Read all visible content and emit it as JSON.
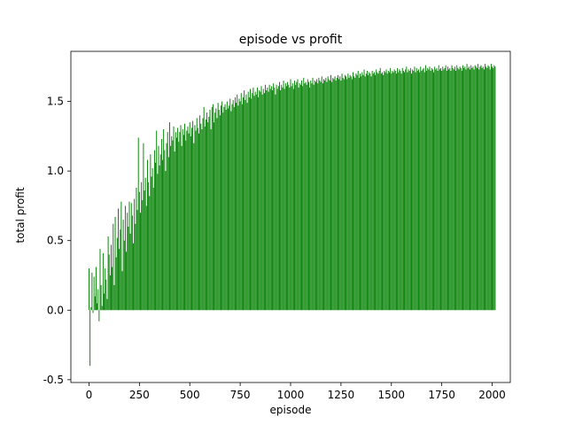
{
  "chart_data": {
    "type": "bar",
    "title": "episode vs profit",
    "xlabel": "episode",
    "ylabel": "total profit",
    "xlim": [
      -90,
      2090
    ],
    "ylim": [
      -0.52,
      1.86
    ],
    "xticks": [
      0,
      250,
      500,
      750,
      1000,
      1250,
      1500,
      1750,
      2000
    ],
    "yticks": [
      -0.5,
      0.0,
      0.5,
      1.0,
      1.5
    ],
    "bar_color": "#008000",
    "series": [
      {
        "x_start": 0,
        "x_step": 5,
        "values": [
          0.3,
          -0.4,
          0.02,
          0.27,
          -0.02,
          0.24,
          0.1,
          0.31,
          0.05,
          0.15,
          -0.08,
          0.44,
          0.18,
          0.03,
          0.41,
          0.12,
          0.3,
          0.22,
          0.08,
          0.53,
          0.4,
          0.25,
          0.47,
          0.31,
          0.62,
          0.18,
          0.67,
          0.38,
          0.52,
          0.73,
          0.44,
          0.58,
          0.78,
          0.28,
          0.65,
          0.5,
          0.75,
          0.42,
          0.7,
          0.6,
          0.78,
          0.55,
          0.77,
          0.68,
          0.48,
          0.8,
          0.62,
          0.88,
          0.72,
          1.24,
          0.85,
          0.7,
          0.92,
          0.79,
          1.2,
          0.86,
          0.95,
          0.75,
          1.08,
          0.92,
          0.82,
          1.12,
          0.96,
          1.02,
          0.88,
          1.15,
          1.06,
          1.29,
          0.98,
          1.18,
          1.04,
          1.12,
          1.23,
          1.08,
          1.3,
          1.15,
          1.0,
          1.2,
          1.28,
          1.1,
          1.35,
          1.18,
          1.25,
          1.22,
          1.32,
          1.14,
          1.28,
          1.24,
          1.31,
          1.21,
          1.28,
          1.33,
          1.18,
          1.3,
          1.26,
          1.34,
          1.22,
          1.29,
          1.32,
          1.27,
          1.35,
          1.25,
          1.31,
          1.36,
          1.2,
          1.33,
          1.29,
          1.38,
          1.31,
          1.27,
          1.4,
          1.34,
          1.3,
          1.38,
          1.46,
          1.32,
          1.37,
          1.42,
          1.35,
          1.39,
          1.44,
          1.3,
          1.46,
          1.48,
          1.35,
          1.42,
          1.45,
          1.38,
          1.49,
          1.44,
          1.4,
          1.47,
          1.5,
          1.42,
          1.46,
          1.48,
          1.44,
          1.5,
          1.45,
          1.47,
          1.52,
          1.43,
          1.48,
          1.51,
          1.46,
          1.53,
          1.49,
          1.55,
          1.47,
          1.52,
          1.5,
          1.56,
          1.48,
          1.53,
          1.58,
          1.51,
          1.55,
          1.49,
          1.57,
          1.53,
          1.59,
          1.52,
          1.56,
          1.6,
          1.54,
          1.57,
          1.55,
          1.6,
          1.53,
          1.58,
          1.57,
          1.61,
          1.55,
          1.59,
          1.56,
          1.62,
          1.58,
          1.6,
          1.57,
          1.62,
          1.59,
          1.61,
          1.58,
          1.63,
          1.6,
          1.55,
          1.62,
          1.59,
          1.61,
          1.64,
          1.58,
          1.62,
          1.6,
          1.65,
          1.59,
          1.63,
          1.61,
          1.64,
          1.62,
          1.6,
          1.66,
          1.61,
          1.63,
          1.59,
          1.65,
          1.62,
          1.64,
          1.66,
          1.6,
          1.63,
          1.62,
          1.65,
          1.61,
          1.67,
          1.63,
          1.64,
          1.62,
          1.66,
          1.64,
          1.6,
          1.65,
          1.63,
          1.67,
          1.62,
          1.65,
          1.64,
          1.66,
          1.63,
          1.67,
          1.65,
          1.64,
          1.68,
          1.63,
          1.66,
          1.65,
          1.67,
          1.64,
          1.68,
          1.66,
          1.65,
          1.69,
          1.64,
          1.67,
          1.66,
          1.68,
          1.65,
          1.67,
          1.69,
          1.66,
          1.68,
          1.65,
          1.7,
          1.67,
          1.66,
          1.69,
          1.68,
          1.66,
          1.7,
          1.67,
          1.69,
          1.68,
          1.66,
          1.71,
          1.68,
          1.67,
          1.7,
          1.69,
          1.72,
          1.67,
          1.7,
          1.68,
          1.71,
          1.69,
          1.73,
          1.68,
          1.7,
          1.72,
          1.69,
          1.71,
          1.7,
          1.68,
          1.72,
          1.7,
          1.71,
          1.69,
          1.73,
          1.71,
          1.7,
          1.72,
          1.74,
          1.7,
          1.71,
          1.69,
          1.72,
          1.71,
          1.73,
          1.7,
          1.72,
          1.71,
          1.74,
          1.7,
          1.72,
          1.71,
          1.73,
          1.72,
          1.7,
          1.74,
          1.71,
          1.73,
          1.72,
          1.7,
          1.74,
          1.72,
          1.71,
          1.73,
          1.75,
          1.71,
          1.73,
          1.72,
          1.74,
          1.7,
          1.73,
          1.72,
          1.75,
          1.71,
          1.74,
          1.72,
          1.73,
          1.71,
          1.75,
          1.72,
          1.73,
          1.74,
          1.71,
          1.76,
          1.72,
          1.74,
          1.73,
          1.75,
          1.72,
          1.74,
          1.73,
          1.71,
          1.75,
          1.73,
          1.74,
          1.72,
          1.76,
          1.73,
          1.74,
          1.72,
          1.75,
          1.73,
          1.74,
          1.76,
          1.72,
          1.75,
          1.73,
          1.74,
          1.72,
          1.76,
          1.74,
          1.73,
          1.75,
          1.72,
          1.76,
          1.74,
          1.73,
          1.75,
          1.74,
          1.72,
          1.76,
          1.74,
          1.75,
          1.73,
          1.77,
          1.74,
          1.75,
          1.73,
          1.76,
          1.74,
          1.75,
          1.73,
          1.76,
          1.75,
          1.74,
          1.77,
          1.73,
          1.75,
          1.76,
          1.74,
          1.75,
          1.73,
          1.77,
          1.75,
          1.74,
          1.76,
          1.75,
          1.73,
          1.77,
          1.75,
          1.74,
          1.76,
          1.75
        ]
      }
    ]
  }
}
